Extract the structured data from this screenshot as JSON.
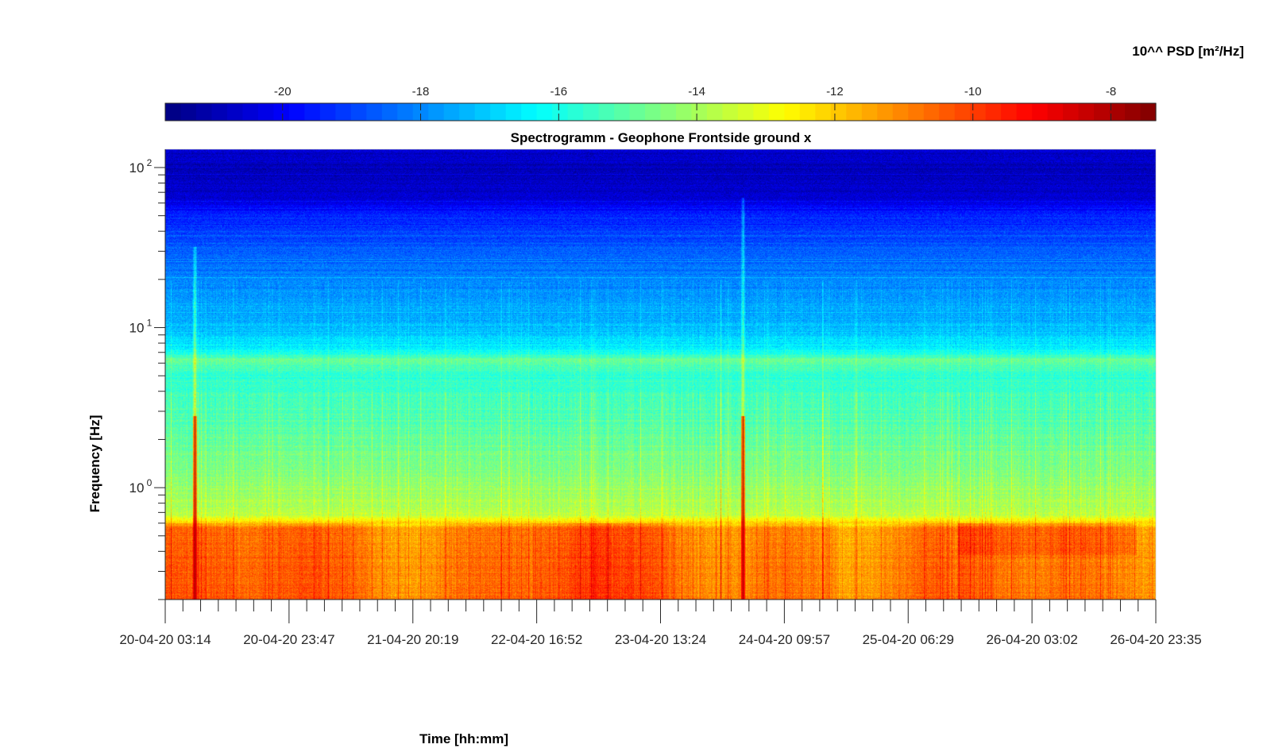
{
  "chart_data": {
    "type": "heatmap",
    "title": "Spectrogramm - Geophone Frontside ground x",
    "xlabel": "Time [hh:mm]",
    "ylabel": "Frequency [Hz]",
    "colorbar": {
      "label": "10^^ PSD [m²/Hz]",
      "location": "top",
      "colormap": "jet",
      "range": [
        -21.7,
        -7.35
      ],
      "ticks": [
        -20,
        -18,
        -16,
        -14,
        -12,
        -10,
        -8
      ],
      "tick_labels": [
        "-20",
        "-18",
        "-16",
        "-14",
        "-12",
        "-10",
        "-8"
      ]
    },
    "x_axis": {
      "tick_labels": [
        "20-04-20 03:14",
        "20-04-20 23:47",
        "21-04-20 20:19",
        "22-04-20 16:52",
        "23-04-20 13:24",
        "24-04-20 09:57",
        "25-04-20 06:29",
        "26-04-20 03:02",
        "26-04-20 23:35"
      ],
      "minor_ticks_per_interval": 6
    },
    "y_axis": {
      "scale": "log",
      "range": [
        0.2,
        130
      ],
      "major_ticks": [
        1,
        10,
        100
      ],
      "tick_labels": [
        "10",
        "10",
        "10"
      ],
      "tick_exponents": [
        "0",
        "1",
        "2"
      ]
    },
    "features": {
      "bands": [
        {
          "low_hz": 0.2,
          "high_hz": 0.62,
          "level": -10.8
        },
        {
          "low_hz": 5.6,
          "high_hz": 6.6,
          "level": -14.7
        }
      ],
      "transients": [
        {
          "time": "20-04-20 08:45",
          "max_hz": 32,
          "peak_level": -7.8
        },
        {
          "time": "24-04-20 03:20",
          "max_hz": 65,
          "peak_level": -7.8
        }
      ]
    },
    "grid": false
  }
}
